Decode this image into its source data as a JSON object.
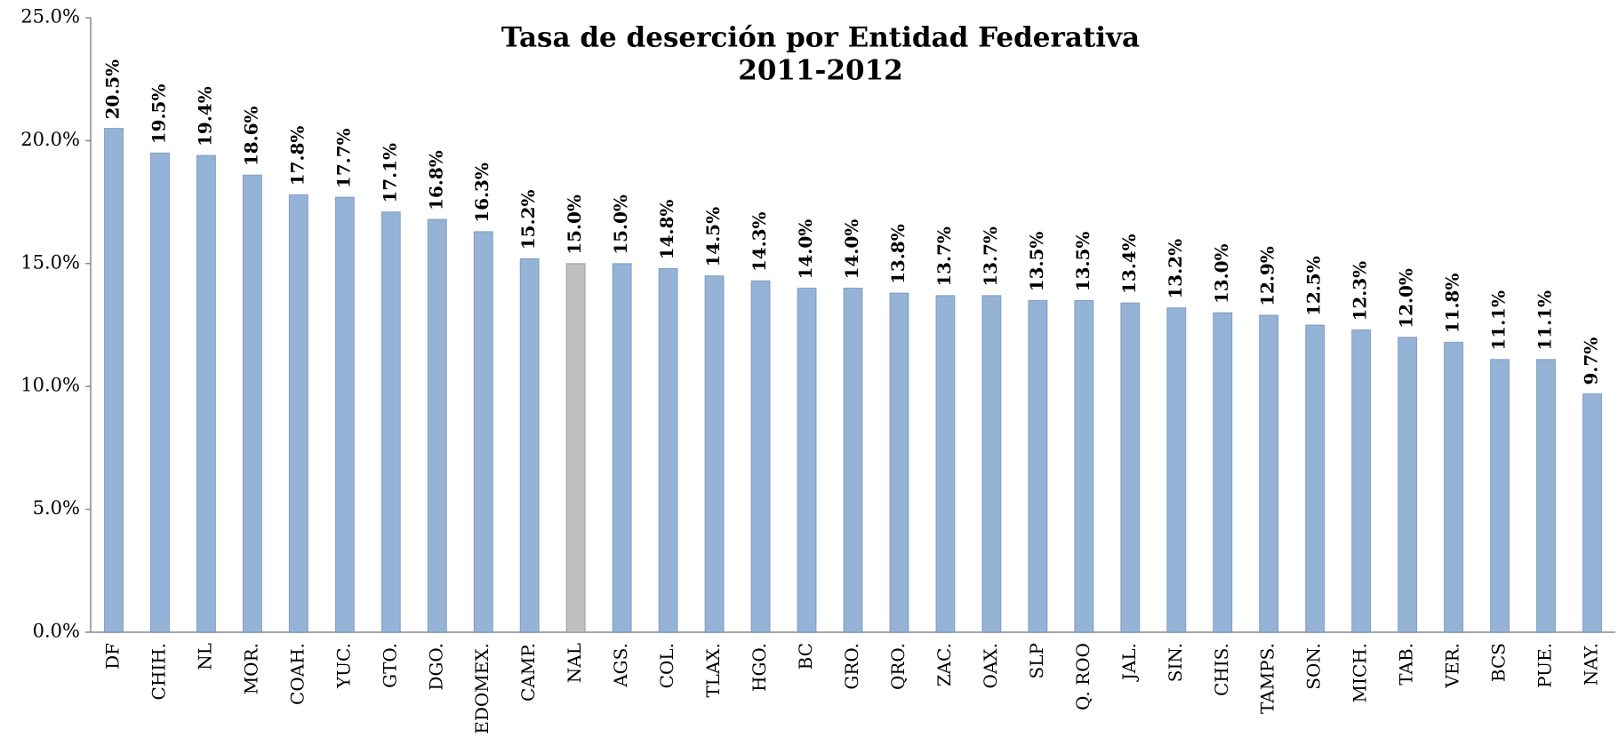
{
  "chart_data": {
    "type": "bar",
    "title": "Tasa de deserción por Entidad Federativa",
    "subtitle": "2011-2012",
    "categories": [
      "DF",
      "CHIH.",
      "NL",
      "MOR.",
      "COAH.",
      "YUC.",
      "GTO.",
      "DGO.",
      "EDOMEX.",
      "CAMP.",
      "NAL",
      "AGS.",
      "COL.",
      "TLAX.",
      "HGO.",
      "BC",
      "GRO.",
      "QRO.",
      "ZAC.",
      "OAX.",
      "SLP",
      "Q. ROO",
      "JAL.",
      "SIN.",
      "CHIS.",
      "TAMPS.",
      "SON.",
      "MICH.",
      "TAB.",
      "VER.",
      "BCS",
      "PUE.",
      "NAY."
    ],
    "values": [
      20.5,
      19.5,
      19.4,
      18.6,
      17.8,
      17.7,
      17.1,
      16.8,
      16.3,
      15.2,
      15.0,
      15.0,
      14.8,
      14.5,
      14.3,
      14.0,
      14.0,
      13.8,
      13.7,
      13.7,
      13.5,
      13.5,
      13.4,
      13.2,
      13.0,
      12.9,
      12.5,
      12.3,
      12.0,
      11.8,
      11.1,
      11.1,
      9.7
    ],
    "value_labels": [
      "20.5%",
      "19.5%",
      "19.4%",
      "18.6%",
      "17.8%",
      "17.7%",
      "17.1%",
      "16.8%",
      "16.3%",
      "15.2%",
      "15.0%",
      "15.0%",
      "14.8%",
      "14.5%",
      "14.3%",
      "14.0%",
      "14.0%",
      "13.8%",
      "13.7%",
      "13.7%",
      "13.5%",
      "13.5%",
      "13.4%",
      "13.2%",
      "13.0%",
      "12.9%",
      "12.5%",
      "12.3%",
      "12.0%",
      "11.8%",
      "11.1%",
      "11.1%",
      "9.7%"
    ],
    "colors": [
      "#95b3d7",
      "#95b3d7",
      "#95b3d7",
      "#95b3d7",
      "#95b3d7",
      "#95b3d7",
      "#95b3d7",
      "#95b3d7",
      "#95b3d7",
      "#95b3d7",
      "#bfbfbf",
      "#95b3d7",
      "#95b3d7",
      "#95b3d7",
      "#95b3d7",
      "#95b3d7",
      "#95b3d7",
      "#95b3d7",
      "#95b3d7",
      "#95b3d7",
      "#95b3d7",
      "#95b3d7",
      "#95b3d7",
      "#95b3d7",
      "#95b3d7",
      "#95b3d7",
      "#95b3d7",
      "#95b3d7",
      "#95b3d7",
      "#95b3d7",
      "#95b3d7",
      "#95b3d7",
      "#95b3d7"
    ],
    "ylim": [
      0,
      25
    ],
    "yticks": [
      {
        "value": 0,
        "label": "0.0%"
      },
      {
        "value": 5,
        "label": "5.0%"
      },
      {
        "value": 10,
        "label": "10.0%"
      },
      {
        "value": 15,
        "label": "15.0%"
      },
      {
        "value": 20,
        "label": "20.0%"
      },
      {
        "value": 25,
        "label": "25.0%"
      }
    ],
    "grid": false
  }
}
